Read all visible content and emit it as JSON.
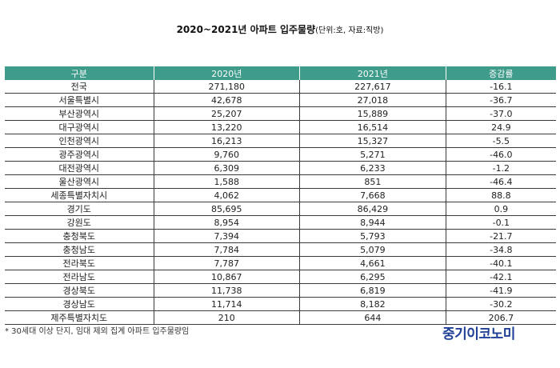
{
  "title": {
    "main": "2020~2021년 아파트 입주물량",
    "sub": "(단위:호, 자료:직방)"
  },
  "table": {
    "headers": [
      "구분",
      "2020년",
      "2021년",
      "증감률"
    ],
    "rows": [
      [
        "전국",
        "271,180",
        "227,617",
        "-16.1"
      ],
      [
        "서울특별시",
        "42,678",
        "27,018",
        "-36.7"
      ],
      [
        "부산광역시",
        "25,207",
        "15,889",
        "-37.0"
      ],
      [
        "대구광역시",
        "13,220",
        "16,514",
        "24.9"
      ],
      [
        "인천광역시",
        "16,213",
        "15,327",
        "-5.5"
      ],
      [
        "광주광역시",
        "9,760",
        "5,271",
        "-46.0"
      ],
      [
        "대전광역시",
        "6,309",
        "6,233",
        "-1.2"
      ],
      [
        "울산광역시",
        "1,588",
        "851",
        "-46.4"
      ],
      [
        "세종특별자치시",
        "4,062",
        "7,668",
        "88.8"
      ],
      [
        "경기도",
        "85,695",
        "86,429",
        "0.9"
      ],
      [
        "강원도",
        "8,954",
        "8,944",
        "-0.1"
      ],
      [
        "충청북도",
        "7,394",
        "5,793",
        "-21.7"
      ],
      [
        "충청남도",
        "7,784",
        "5,079",
        "-34.8"
      ],
      [
        "전라북도",
        "7,787",
        "4,661",
        "-40.1"
      ],
      [
        "전라남도",
        "10,867",
        "6,295",
        "-42.1"
      ],
      [
        "경상북도",
        "11,738",
        "6,819",
        "-41.9"
      ],
      [
        "경상남도",
        "11,714",
        "8,182",
        "-30.2"
      ],
      [
        "제주특별자치도",
        "210",
        "644",
        "206.7"
      ]
    ]
  },
  "footnote": "* 30세대 이상 단지, 임대 제외 집계 아파트 입주물량임",
  "brand": "중기이코노미",
  "colors": {
    "header_bg": "#3f9b8a",
    "header_text": "#ffffff",
    "brand": "#1f3f97"
  }
}
